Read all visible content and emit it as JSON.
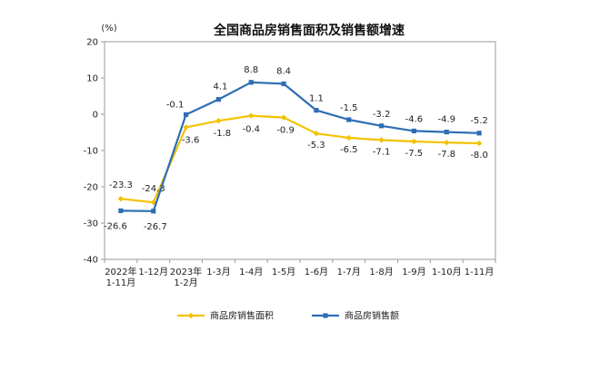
{
  "chart_data": {
    "type": "line",
    "title": "全国商品房销售面积及销售额增速",
    "unit_label": "(%)",
    "ylim": [
      -40,
      20
    ],
    "yticks": [
      20,
      10,
      0,
      -10,
      -20,
      -30,
      -40
    ],
    "grid": false,
    "legend_position": "bottom",
    "categories": [
      [
        "2022年",
        "1-11月"
      ],
      [
        "1-12月"
      ],
      [
        "2023年",
        "1-2月"
      ],
      [
        "1-3月"
      ],
      [
        "1-4月"
      ],
      [
        "1-5月"
      ],
      [
        "1-6月"
      ],
      [
        "1-7月"
      ],
      [
        "1-8月"
      ],
      [
        "1-9月"
      ],
      [
        "1-10月"
      ],
      [
        "1-11月"
      ]
    ],
    "series": [
      {
        "name": "商品房销售面积",
        "color": "#f2c200",
        "marker": "diamond",
        "values": [
          -23.3,
          -24.3,
          -3.6,
          -1.8,
          -0.4,
          -0.9,
          -5.3,
          -6.5,
          -7.1,
          -7.5,
          -7.8,
          -8.0
        ],
        "labels": [
          "-23.3",
          "-24.3",
          "-3.6",
          "-1.8",
          "-0.4",
          "-0.9",
          "-5.3",
          "-6.5",
          "-7.1",
          "-7.5",
          "-7.8",
          "-8.0"
        ]
      },
      {
        "name": "商品房销售额",
        "color": "#2e6db4",
        "marker": "square",
        "values": [
          -26.6,
          -26.7,
          -0.1,
          4.1,
          8.8,
          8.4,
          1.1,
          -1.5,
          -3.2,
          -4.6,
          -4.9,
          -5.2
        ],
        "labels": [
          "-26.6",
          "-26.7",
          "-0.1",
          "4.1",
          "8.8",
          "8.4",
          "1.1",
          "-1.5",
          "-3.2",
          "-4.6",
          "-4.9",
          "-5.2"
        ]
      }
    ]
  }
}
